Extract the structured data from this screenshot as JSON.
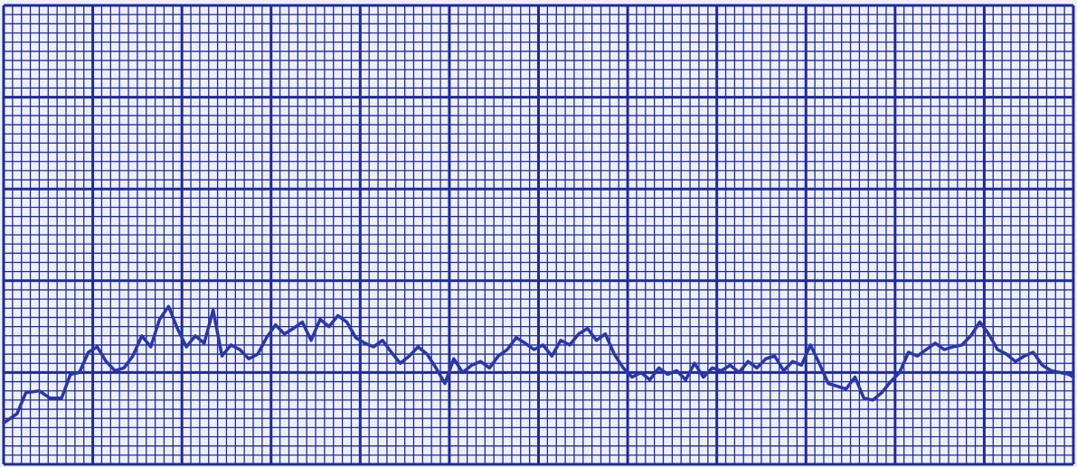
{
  "colors": {
    "paper": "#eef0f8",
    "grid": "#1f2a9e",
    "trace": "#2a37a8"
  },
  "chart_data": {
    "type": "line",
    "title": "",
    "xlabel": "",
    "ylabel": "",
    "grid": true,
    "x_major_divisions": 12,
    "x_minor_per_major": 10,
    "y_major_divisions": 5,
    "y_minor_per_major": 10,
    "xlim": [
      0,
      12
    ],
    "ylim": [
      0,
      5
    ],
    "series": [
      {
        "name": "",
        "x": [
          0.0,
          0.15,
          0.25,
          0.4,
          0.52,
          0.65,
          0.75,
          0.85,
          0.95,
          1.05,
          1.15,
          1.25,
          1.35,
          1.45,
          1.55,
          1.65,
          1.75,
          1.85,
          1.95,
          2.05,
          2.15,
          2.25,
          2.35,
          2.45,
          2.55,
          2.65,
          2.75,
          2.85,
          2.95,
          3.05,
          3.15,
          3.25,
          3.35,
          3.45,
          3.55,
          3.65,
          3.75,
          3.85,
          3.95,
          4.05,
          4.15,
          4.25,
          4.35,
          4.45,
          4.55,
          4.65,
          4.75,
          4.85,
          4.95,
          5.05,
          5.15,
          5.25,
          5.35,
          5.45,
          5.55,
          5.65,
          5.75,
          5.85,
          5.95,
          6.05,
          6.15,
          6.25,
          6.35,
          6.45,
          6.55,
          6.65,
          6.75,
          6.85,
          6.95,
          7.05,
          7.15,
          7.25,
          7.35,
          7.45,
          7.55,
          7.65,
          7.75,
          7.85,
          7.95,
          8.05,
          8.15,
          8.25,
          8.35,
          8.45,
          8.55,
          8.65,
          8.75,
          8.85,
          8.95,
          9.05,
          9.15,
          9.25,
          9.35,
          9.45,
          9.55,
          9.65,
          9.75,
          9.85,
          9.95,
          10.05,
          10.15,
          10.25,
          10.35,
          10.45,
          10.55,
          10.65,
          10.75,
          10.85,
          10.95,
          11.05,
          11.15,
          11.25,
          11.35,
          11.45,
          11.55,
          11.65,
          11.75,
          11.85,
          11.95,
          12.0
        ],
        "y": [
          0.45,
          0.55,
          0.78,
          0.8,
          0.72,
          0.72,
          0.98,
          1.0,
          1.22,
          1.28,
          1.12,
          1.02,
          1.05,
          1.18,
          1.4,
          1.28,
          1.58,
          1.72,
          1.48,
          1.28,
          1.4,
          1.32,
          1.68,
          1.18,
          1.3,
          1.25,
          1.15,
          1.2,
          1.38,
          1.52,
          1.42,
          1.48,
          1.55,
          1.35,
          1.58,
          1.5,
          1.62,
          1.55,
          1.38,
          1.32,
          1.28,
          1.35,
          1.22,
          1.1,
          1.18,
          1.28,
          1.2,
          1.05,
          0.88,
          1.15,
          1.0,
          1.08,
          1.12,
          1.05,
          1.18,
          1.25,
          1.38,
          1.32,
          1.25,
          1.3,
          1.18,
          1.35,
          1.3,
          1.42,
          1.48,
          1.35,
          1.42,
          1.2,
          1.05,
          0.95,
          1.0,
          0.92,
          1.05,
          0.98,
          1.02,
          0.92,
          1.1,
          0.95,
          1.05,
          1.02,
          1.08,
          1.0,
          1.12,
          1.05,
          1.15,
          1.18,
          1.02,
          1.12,
          1.08,
          1.3,
          1.1,
          0.88,
          0.85,
          0.82,
          0.95,
          0.72,
          0.7,
          0.78,
          0.9,
          1.0,
          1.22,
          1.18,
          1.25,
          1.32,
          1.25,
          1.28,
          1.3,
          1.4,
          1.55,
          1.42,
          1.25,
          1.2,
          1.12,
          1.18,
          1.22,
          1.08,
          1.02,
          1.0,
          0.98,
          0.95
        ]
      }
    ]
  }
}
